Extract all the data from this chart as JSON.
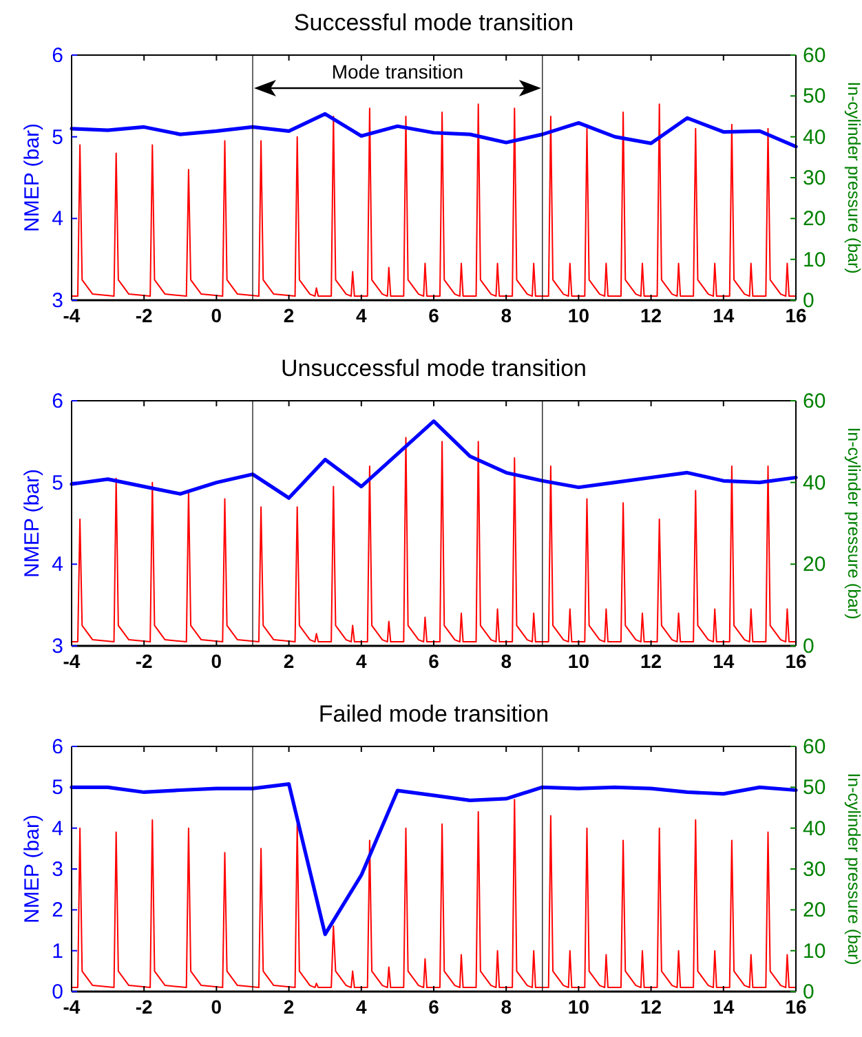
{
  "chart_data": [
    {
      "type": "line",
      "title": "Successful mode transition",
      "ylabel": "NMEP (bar)",
      "y2label": "In-cylinder pressure (bar)",
      "xlim": [
        -4,
        16
      ],
      "xticks": [
        -4,
        -2,
        0,
        2,
        4,
        6,
        8,
        10,
        12,
        14,
        16
      ],
      "ylim": [
        3,
        6
      ],
      "yticks": [
        3,
        4,
        5,
        6
      ],
      "y2lim": [
        0,
        60
      ],
      "y2ticks": [
        0,
        10,
        20,
        30,
        40,
        50,
        60
      ],
      "annotations": [
        "Mode transition"
      ],
      "ref_lines": [
        {
          "axis": "x",
          "value": 1,
          "color": "#000000"
        },
        {
          "axis": "x",
          "value": 9,
          "color": "#000000"
        }
      ],
      "series": [
        {
          "type": "line",
          "color": "#0000ff",
          "x": [
            -4,
            -3,
            -2,
            -1,
            0,
            1,
            2,
            3,
            4,
            5,
            6,
            7,
            8,
            9,
            10,
            11,
            12,
            13,
            14,
            15,
            16
          ],
          "values": [
            5.1,
            5.08,
            5.12,
            5.03,
            5.07,
            5.12,
            5.07,
            5.28,
            5.01,
            5.13,
            5.05,
            5.03,
            4.93,
            5.03,
            5.17,
            5.0,
            4.92,
            5.23,
            5.06,
            5.07,
            4.88
          ]
        },
        {
          "type": "line",
          "color": "#ff0000",
          "axis": "y2",
          "x": [
            -4,
            -3.83,
            -3.77,
            -3.71,
            -3.42,
            -2.83,
            -2.77,
            -2.71,
            -2.42,
            -1.83,
            -1.77,
            -1.71,
            -1.42,
            -0.83,
            -0.77,
            -0.71,
            -0.42,
            0.17,
            0.23,
            0.29,
            0.58,
            1.17,
            1.23,
            1.29,
            1.58,
            2.17,
            2.23,
            2.29,
            2.58,
            2.72,
            2.76,
            2.81,
            3.17,
            3.23,
            3.29,
            3.58,
            3.72,
            3.76,
            3.81,
            4.17,
            4.23,
            4.29,
            4.58,
            4.72,
            4.76,
            4.81,
            5.17,
            5.23,
            5.29,
            5.58,
            5.72,
            5.76,
            5.81,
            6.17,
            6.23,
            6.29,
            6.58,
            6.72,
            6.76,
            6.81,
            7.17,
            7.23,
            7.29,
            7.58,
            7.72,
            7.76,
            7.81,
            8.17,
            8.23,
            8.29,
            8.58,
            8.72,
            8.76,
            8.81,
            9.17,
            9.23,
            9.29,
            9.58,
            9.72,
            9.76,
            9.81,
            10.17,
            10.23,
            10.29,
            10.58,
            10.72,
            10.76,
            10.81,
            11.17,
            11.23,
            11.29,
            11.58,
            11.72,
            11.76,
            11.81,
            12.17,
            12.23,
            12.29,
            12.58,
            12.72,
            12.76,
            12.81,
            13.17,
            13.23,
            13.29,
            13.58,
            13.72,
            13.76,
            13.81,
            14.17,
            14.23,
            14.29,
            14.58,
            14.72,
            14.76,
            14.81,
            15.17,
            15.23,
            15.29,
            15.58,
            15.72,
            15.76,
            15.81,
            16
          ],
          "values": [
            1,
            1,
            38,
            5,
            1.5,
            1,
            36,
            5,
            1.5,
            1,
            38,
            5,
            1.5,
            1,
            32,
            5,
            1.5,
            1,
            39,
            5,
            1.5,
            1,
            39,
            5,
            1.5,
            1,
            40,
            5,
            1.5,
            1,
            3,
            1,
            1,
            45,
            5,
            1.5,
            1,
            7,
            1,
            1,
            47,
            5,
            1.5,
            1,
            8,
            1,
            1,
            45,
            5,
            1.5,
            1,
            9,
            1,
            1,
            46,
            5,
            1.5,
            1,
            9,
            1,
            1,
            48,
            5,
            1.5,
            1,
            9,
            1,
            1,
            47,
            5,
            1.5,
            1,
            9,
            1,
            1,
            45,
            5,
            1.5,
            1,
            9,
            1,
            1,
            42,
            5,
            1.5,
            1,
            9,
            1,
            1,
            46,
            5,
            1.5,
            1,
            9,
            1,
            1,
            48,
            5,
            1.5,
            1,
            9,
            1,
            1,
            42,
            5,
            1.5,
            1,
            9,
            1,
            1,
            43,
            5,
            1.5,
            1,
            9,
            1,
            1,
            42,
            5,
            1.5,
            1,
            9,
            1,
            1
          ]
        }
      ]
    },
    {
      "type": "line",
      "title": "Unsuccessful mode transition",
      "ylabel": "NMEP (bar)",
      "y2label": "In-cylinder pressure (bar)",
      "xlim": [
        -4,
        16
      ],
      "xticks": [
        -4,
        -2,
        0,
        2,
        4,
        6,
        8,
        10,
        12,
        14,
        16
      ],
      "ylim": [
        3,
        6
      ],
      "yticks": [
        3,
        4,
        5,
        6
      ],
      "y2lim": [
        0,
        60
      ],
      "y2ticks": [
        0,
        20,
        40,
        60
      ],
      "ref_lines": [
        {
          "axis": "x",
          "value": 1,
          "color": "#000000"
        },
        {
          "axis": "x",
          "value": 9,
          "color": "#000000"
        }
      ],
      "series": [
        {
          "type": "line",
          "color": "#0000ff",
          "x": [
            -4,
            -3,
            -2,
            -1,
            0,
            1,
            2,
            3,
            4,
            5,
            6,
            7,
            8,
            9,
            10,
            11,
            12,
            13,
            14,
            15,
            16
          ],
          "values": [
            4.98,
            5.04,
            4.95,
            4.86,
            5.0,
            5.1,
            4.81,
            5.28,
            4.95,
            5.35,
            5.75,
            5.32,
            5.12,
            5.02,
            4.94,
            5.0,
            5.06,
            5.12,
            5.02,
            5.0,
            5.06
          ]
        },
        {
          "type": "line",
          "color": "#ff0000",
          "axis": "y2",
          "x": [
            -4,
            -3.83,
            -3.77,
            -3.71,
            -3.42,
            -2.83,
            -2.77,
            -2.71,
            -2.42,
            -1.83,
            -1.77,
            -1.71,
            -1.42,
            -0.83,
            -0.77,
            -0.71,
            -0.42,
            0.17,
            0.23,
            0.29,
            0.58,
            1.17,
            1.23,
            1.29,
            1.58,
            2.17,
            2.23,
            2.29,
            2.58,
            2.72,
            2.76,
            2.81,
            3.17,
            3.23,
            3.29,
            3.58,
            3.72,
            3.76,
            3.81,
            4.17,
            4.23,
            4.29,
            4.58,
            4.72,
            4.76,
            4.81,
            5.17,
            5.23,
            5.29,
            5.58,
            5.72,
            5.76,
            5.81,
            6.17,
            6.23,
            6.29,
            6.58,
            6.72,
            6.76,
            6.81,
            7.17,
            7.23,
            7.29,
            7.58,
            7.72,
            7.76,
            7.81,
            8.17,
            8.23,
            8.29,
            8.58,
            8.72,
            8.76,
            8.81,
            9.17,
            9.23,
            9.29,
            9.58,
            9.72,
            9.76,
            9.81,
            10.17,
            10.23,
            10.29,
            10.58,
            10.72,
            10.76,
            10.81,
            11.17,
            11.23,
            11.29,
            11.58,
            11.72,
            11.76,
            11.81,
            12.17,
            12.23,
            12.29,
            12.58,
            12.72,
            12.76,
            12.81,
            13.17,
            13.23,
            13.29,
            13.58,
            13.72,
            13.76,
            13.81,
            14.17,
            14.23,
            14.29,
            14.58,
            14.72,
            14.76,
            14.81,
            15.17,
            15.23,
            15.29,
            15.58,
            15.72,
            15.76,
            15.81,
            16
          ],
          "values": [
            1,
            1,
            31,
            5,
            1.5,
            1,
            41,
            5,
            1.5,
            1,
            40,
            5,
            1.5,
            1,
            38,
            5,
            1.5,
            1,
            36,
            5,
            1.5,
            1,
            34,
            5,
            1.5,
            1,
            34,
            5,
            1.5,
            1,
            3,
            1,
            1,
            39,
            5,
            1.5,
            1,
            5,
            1,
            1,
            44,
            5,
            1.5,
            1,
            6,
            1,
            1,
            51,
            5,
            1.5,
            1,
            7,
            1,
            1,
            50,
            5,
            1.5,
            1,
            8,
            1,
            1,
            50,
            5,
            1.5,
            1,
            9,
            1,
            1,
            46,
            5,
            1.5,
            1,
            8,
            1,
            1,
            44,
            5,
            1.5,
            1,
            9,
            1,
            1,
            36,
            5,
            1.5,
            1,
            9,
            1,
            1,
            35,
            5,
            1.5,
            1,
            8,
            1,
            1,
            31,
            5,
            1.5,
            1,
            8,
            1,
            1,
            38,
            5,
            1.5,
            1,
            9,
            1,
            1,
            44,
            5,
            1.5,
            1,
            9,
            1,
            1,
            44,
            5,
            1.5,
            1,
            9,
            1,
            1
          ]
        }
      ]
    },
    {
      "type": "line",
      "title": "Failed mode transition",
      "ylabel": "NMEP (bar)",
      "y2label": "In-cylinder pressure (bar)",
      "xlim": [
        -4,
        16
      ],
      "xticks": [
        -4,
        -2,
        0,
        2,
        4,
        6,
        8,
        10,
        12,
        14,
        16
      ],
      "ylim": [
        0,
        6
      ],
      "yticks": [
        0,
        1,
        2,
        3,
        4,
        5,
        6
      ],
      "y2lim": [
        0,
        60
      ],
      "y2ticks": [
        0,
        10,
        20,
        30,
        40,
        50,
        60
      ],
      "ref_lines": [
        {
          "axis": "x",
          "value": 1,
          "color": "#000000"
        },
        {
          "axis": "x",
          "value": 9,
          "color": "#000000"
        }
      ],
      "series": [
        {
          "type": "line",
          "color": "#0000ff",
          "x": [
            -4,
            -3,
            -2,
            -1,
            0,
            1,
            2,
            3,
            4,
            5,
            6,
            7,
            8,
            9,
            10,
            11,
            12,
            13,
            14,
            15,
            16
          ],
          "values": [
            5.0,
            5.0,
            4.88,
            4.93,
            4.97,
            4.97,
            5.08,
            1.4,
            2.85,
            4.92,
            4.8,
            4.68,
            4.72,
            5.0,
            4.97,
            5.0,
            4.97,
            4.88,
            4.84,
            5.0,
            4.93
          ]
        },
        {
          "type": "line",
          "color": "#ff0000",
          "axis": "y2",
          "x": [
            -4,
            -3.83,
            -3.77,
            -3.71,
            -3.42,
            -2.83,
            -2.77,
            -2.71,
            -2.42,
            -1.83,
            -1.77,
            -1.71,
            -1.42,
            -0.83,
            -0.77,
            -0.71,
            -0.42,
            0.17,
            0.23,
            0.29,
            0.58,
            1.17,
            1.23,
            1.29,
            1.58,
            2.17,
            2.23,
            2.29,
            2.58,
            2.72,
            2.76,
            2.81,
            3.17,
            3.23,
            3.29,
            3.58,
            3.72,
            3.76,
            3.81,
            4.17,
            4.23,
            4.29,
            4.58,
            4.72,
            4.76,
            4.81,
            5.17,
            5.23,
            5.29,
            5.58,
            5.72,
            5.76,
            5.81,
            6.17,
            6.23,
            6.29,
            6.58,
            6.72,
            6.76,
            6.81,
            7.17,
            7.23,
            7.29,
            7.58,
            7.72,
            7.76,
            7.81,
            8.17,
            8.23,
            8.29,
            8.58,
            8.72,
            8.76,
            8.81,
            9.17,
            9.23,
            9.29,
            9.58,
            9.72,
            9.76,
            9.81,
            10.17,
            10.23,
            10.29,
            10.58,
            10.72,
            10.76,
            10.81,
            11.17,
            11.23,
            11.29,
            11.58,
            11.72,
            11.76,
            11.81,
            12.17,
            12.23,
            12.29,
            12.58,
            12.72,
            12.76,
            12.81,
            13.17,
            13.23,
            13.29,
            13.58,
            13.72,
            13.76,
            13.81,
            14.17,
            14.23,
            14.29,
            14.58,
            14.72,
            14.76,
            14.81,
            15.17,
            15.23,
            15.29,
            15.58,
            15.72,
            15.76,
            15.81,
            16
          ],
          "values": [
            1,
            1,
            40,
            5,
            1.5,
            1,
            39,
            5,
            1.5,
            1,
            42,
            5,
            1.5,
            1,
            40,
            5,
            1.5,
            1,
            34,
            5,
            1.5,
            1,
            35,
            5,
            1.5,
            1,
            41,
            5,
            1.5,
            1,
            2,
            1,
            1,
            16,
            5,
            1.5,
            1,
            5,
            1,
            1,
            37,
            5,
            1.5,
            1,
            6,
            1,
            1,
            40,
            5,
            1.5,
            1,
            8,
            1,
            1,
            41,
            5,
            1.5,
            1,
            9,
            1,
            1,
            44,
            5,
            1.5,
            1,
            10,
            1,
            1,
            47,
            5,
            1.5,
            1,
            10,
            1,
            1,
            43,
            5,
            1.5,
            1,
            10,
            1,
            1,
            40,
            5,
            1.5,
            1,
            9,
            1,
            1,
            37,
            5,
            1.5,
            1,
            10,
            1,
            1,
            40,
            5,
            1.5,
            1,
            10,
            1,
            1,
            42,
            5,
            1.5,
            1,
            10,
            1,
            1,
            37,
            5,
            1.5,
            1,
            9,
            1,
            1,
            39,
            5,
            1.5,
            1,
            9,
            1,
            1
          ]
        }
      ]
    }
  ]
}
